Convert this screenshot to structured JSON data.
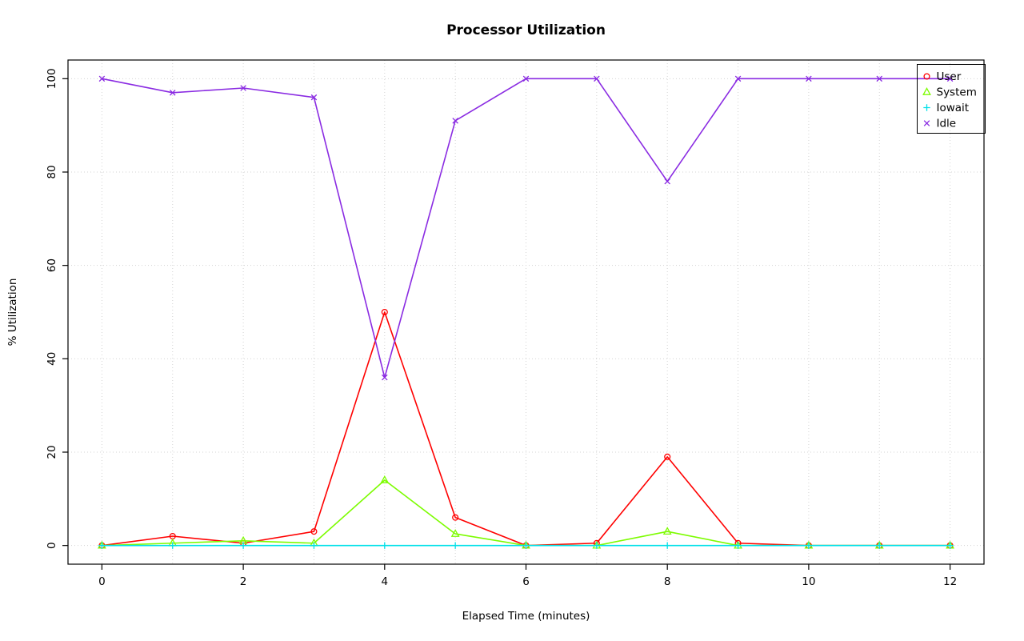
{
  "chart_data": {
    "type": "line",
    "title": "Processor Utilization",
    "xlabel": "Elapsed Time (minutes)",
    "ylabel": "% Utilization",
    "xlim": [
      0,
      12
    ],
    "ylim": [
      0,
      100
    ],
    "x_ticks": [
      0,
      2,
      4,
      6,
      8,
      10,
      12
    ],
    "y_ticks": [
      0,
      20,
      40,
      60,
      80,
      100
    ],
    "grid": {
      "show": true,
      "style": "dotted",
      "color": "#d3d3d3",
      "x_lines": [
        0,
        1,
        2,
        3,
        4,
        5,
        6,
        7,
        8,
        9,
        10,
        11,
        12
      ],
      "y_lines": [
        0,
        20,
        40,
        60,
        80,
        100
      ]
    },
    "x": [
      0,
      1,
      2,
      3,
      4,
      5,
      6,
      7,
      8,
      9,
      10,
      11,
      12
    ],
    "series": [
      {
        "name": "User",
        "color": "#ff0000",
        "marker": "circle",
        "values": [
          0,
          2,
          0.5,
          3,
          50,
          6,
          0,
          0.5,
          19,
          0.5,
          0,
          0,
          0
        ]
      },
      {
        "name": "System",
        "color": "#7cfc00",
        "marker": "triangle",
        "values": [
          0,
          0.5,
          1,
          0.5,
          14,
          2.5,
          0,
          0,
          3,
          0,
          0,
          0,
          0
        ]
      },
      {
        "name": "Iowait",
        "color": "#00e0e8",
        "marker": "plus",
        "values": [
          0,
          0,
          0,
          0,
          0,
          0,
          0,
          0,
          0,
          0,
          0,
          0,
          0
        ]
      },
      {
        "name": "Idle",
        "color": "#8a2be2",
        "marker": "x",
        "values": [
          100,
          97,
          98,
          96,
          36,
          91,
          100,
          100,
          78,
          100,
          100,
          100,
          100
        ]
      }
    ],
    "legend": {
      "position": "topright",
      "labels": [
        "User",
        "System",
        "Iowait",
        "Idle"
      ]
    }
  }
}
